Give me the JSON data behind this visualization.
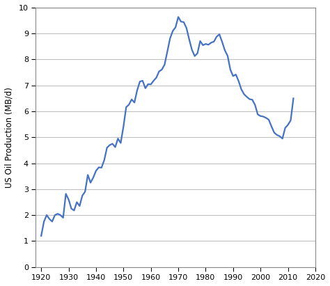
{
  "title": "",
  "ylabel": "US Oil Production (MB/d)",
  "xlim": [
    1918,
    2020
  ],
  "ylim": [
    0,
    10
  ],
  "xticks": [
    1920,
    1930,
    1940,
    1950,
    1960,
    1970,
    1980,
    1990,
    2000,
    2010,
    2020
  ],
  "yticks": [
    0,
    1,
    2,
    3,
    4,
    5,
    6,
    7,
    8,
    9,
    10
  ],
  "line_color": "#4472c4",
  "line_width": 1.6,
  "background_color": "#ffffff",
  "grid_color": "#c0c0c0",
  "years": [
    1920,
    1921,
    1922,
    1923,
    1924,
    1925,
    1926,
    1927,
    1928,
    1929,
    1930,
    1931,
    1932,
    1933,
    1934,
    1935,
    1936,
    1937,
    1938,
    1939,
    1940,
    1941,
    1942,
    1943,
    1944,
    1945,
    1946,
    1947,
    1948,
    1949,
    1950,
    1951,
    1952,
    1953,
    1954,
    1955,
    1956,
    1957,
    1958,
    1959,
    1960,
    1961,
    1962,
    1963,
    1964,
    1965,
    1966,
    1967,
    1968,
    1969,
    1970,
    1971,
    1972,
    1973,
    1974,
    1975,
    1976,
    1977,
    1978,
    1979,
    1980,
    1981,
    1982,
    1983,
    1984,
    1985,
    1986,
    1987,
    1988,
    1989,
    1990,
    1991,
    1992,
    1993,
    1994,
    1995,
    1996,
    1997,
    1998,
    1999,
    2000,
    2001,
    2002,
    2003,
    2004,
    2005,
    2006,
    2007,
    2008,
    2009,
    2010,
    2011,
    2012
  ],
  "values": [
    1.2,
    1.75,
    2.0,
    1.85,
    1.75,
    2.0,
    2.05,
    2.0,
    1.9,
    2.82,
    2.6,
    2.25,
    2.18,
    2.5,
    2.35,
    2.75,
    2.9,
    3.55,
    3.25,
    3.45,
    3.71,
    3.84,
    3.83,
    4.12,
    4.6,
    4.7,
    4.75,
    4.62,
    4.95,
    4.78,
    5.41,
    6.16,
    6.26,
    6.46,
    6.34,
    6.81,
    7.15,
    7.18,
    6.89,
    7.05,
    7.04,
    7.18,
    7.3,
    7.54,
    7.61,
    7.8,
    8.3,
    8.81,
    9.1,
    9.24,
    9.64,
    9.46,
    9.44,
    9.21,
    8.77,
    8.37,
    8.13,
    8.24,
    8.71,
    8.55,
    8.6,
    8.57,
    8.65,
    8.69,
    8.88,
    8.97,
    8.68,
    8.35,
    8.14,
    7.61,
    7.36,
    7.42,
    7.17,
    6.85,
    6.66,
    6.56,
    6.47,
    6.45,
    6.25,
    5.88,
    5.82,
    5.8,
    5.75,
    5.68,
    5.42,
    5.18,
    5.09,
    5.04,
    4.95,
    5.36,
    5.48,
    5.65,
    6.5
  ]
}
